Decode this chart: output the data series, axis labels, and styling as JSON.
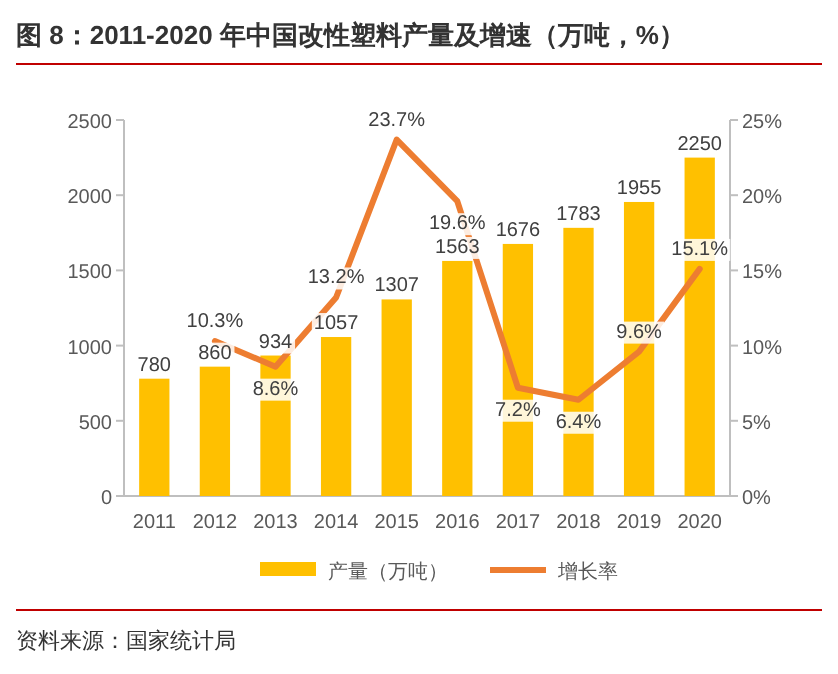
{
  "chart_data": {
    "type": "bar",
    "title": "图 8：2011-2020 年中国改性塑料产量及增速（万吨，%）",
    "categories": [
      "2011",
      "2012",
      "2013",
      "2014",
      "2015",
      "2016",
      "2017",
      "2018",
      "2019",
      "2020"
    ],
    "series": [
      {
        "name": "产量（万吨）",
        "color": "#ffc000",
        "values": [
          780,
          860,
          934,
          1057,
          1307,
          1563,
          1676,
          1783,
          1955,
          2250
        ],
        "value_labels": [
          "780",
          "860",
          "934",
          "1057",
          "1307",
          "1563",
          "1676",
          "1783",
          "1955",
          "2250"
        ]
      },
      {
        "name": "增长率",
        "type": "line",
        "axis": "y2",
        "color": "#ed7d31",
        "values": [
          null,
          10.3,
          8.6,
          13.2,
          23.7,
          19.6,
          7.2,
          6.4,
          9.6,
          15.1
        ],
        "value_labels": [
          null,
          "10.3%",
          "8.6%",
          "13.2%",
          "23.7%",
          "19.6%",
          "7.2%",
          "6.4%",
          "9.6%",
          "15.1%"
        ]
      }
    ],
    "ylim": [
      0,
      2500
    ],
    "yticks": [
      0,
      500,
      1000,
      1500,
      2000,
      2500
    ],
    "y2lim": [
      0,
      25
    ],
    "y2ticks": [
      {
        "value": 0,
        "label": "0%"
      },
      {
        "value": 5,
        "label": "5%"
      },
      {
        "value": 10,
        "label": "10%"
      },
      {
        "value": 15,
        "label": "15%"
      },
      {
        "value": 20,
        "label": "20%"
      },
      {
        "value": 25,
        "label": "25%"
      }
    ],
    "legend": "bottom",
    "annotations": [
      "资料来源：国家统计局"
    ]
  }
}
